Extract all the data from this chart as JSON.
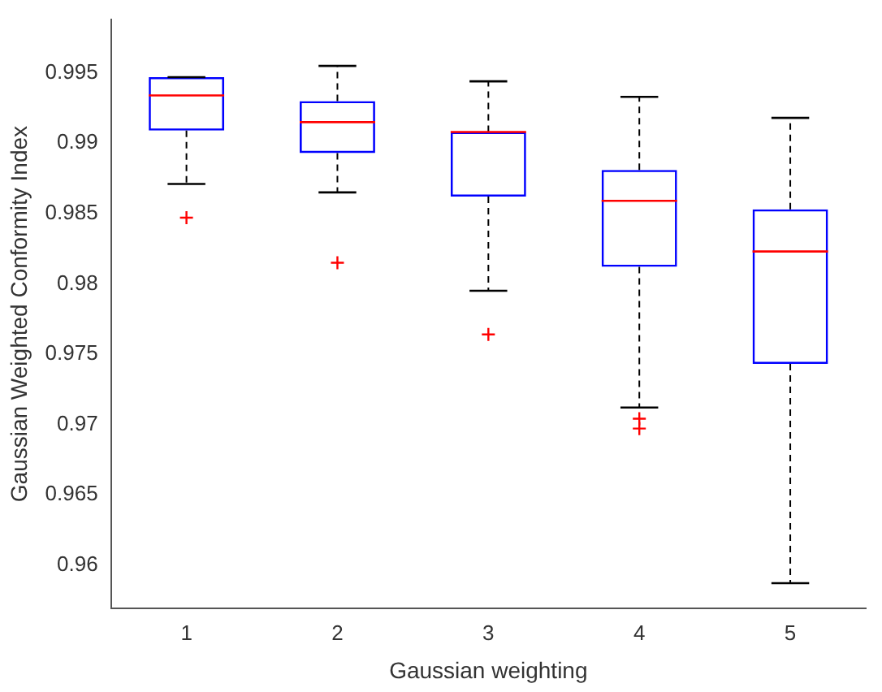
{
  "chart_data": {
    "type": "box",
    "xlabel": "Gaussian weighting",
    "ylabel": "Gaussian Weighted Conformity Index",
    "categories": [
      "1",
      "2",
      "3",
      "4",
      "5"
    ],
    "boxes": [
      {
        "low": 0.9871,
        "q1": 0.9909,
        "median": 0.9934,
        "q3": 0.9947,
        "high": 0.9947,
        "outliers": [
          0.9847
        ]
      },
      {
        "low": 0.9865,
        "q1": 0.9893,
        "median": 0.9915,
        "q3": 0.993,
        "high": 0.9955,
        "outliers": [
          0.9815
        ]
      },
      {
        "low": 0.9795,
        "q1": 0.9862,
        "median": 0.9908,
        "q3": 0.9908,
        "high": 0.9944,
        "outliers": [
          0.9764
        ]
      },
      {
        "low": 0.9712,
        "q1": 0.9812,
        "median": 0.9859,
        "q3": 0.9881,
        "high": 0.9933,
        "outliers": [
          0.9704,
          0.9697
        ]
      },
      {
        "low": 0.9587,
        "q1": 0.9743,
        "median": 0.9823,
        "q3": 0.9853,
        "high": 0.9918
      }
    ],
    "color": "#0000ff",
    "ylim": [
      0.9569,
      0.9988
    ],
    "yticks": [
      0.96,
      0.965,
      0.97,
      0.975,
      0.98,
      0.985,
      0.99,
      0.995
    ],
    "grid": false,
    "legend": false,
    "marker": "cross"
  }
}
